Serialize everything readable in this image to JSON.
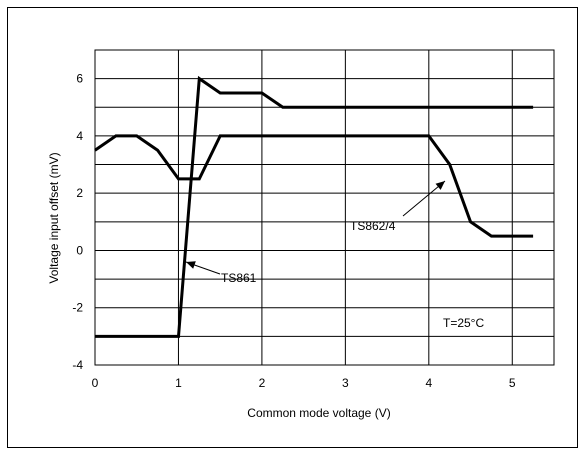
{
  "chart_data": {
    "type": "line",
    "xlabel": "Common mode  voltage (V)",
    "ylabel": "Voltage input offset  (mV)",
    "xlim": [
      0,
      5.5
    ],
    "ylim": [
      -4,
      7
    ],
    "xticks": [
      0,
      1,
      2,
      3,
      4,
      5
    ],
    "yticks": [
      -4,
      -2,
      0,
      2,
      4,
      6
    ],
    "grid": true,
    "series": [
      {
        "name": "TS861",
        "x": [
          0,
          1,
          1.25,
          1.5,
          2,
          2.25,
          5.25
        ],
        "y": [
          -3,
          -3,
          6,
          5.5,
          5.5,
          5,
          5
        ]
      },
      {
        "name": "TS862/4",
        "x": [
          0,
          0.25,
          0.5,
          0.75,
          1,
          1.25,
          1.5,
          4,
          4.25,
          4.5,
          4.75,
          5.25
        ],
        "y": [
          3.5,
          4,
          4,
          3.5,
          2.5,
          2.5,
          4,
          4,
          3,
          1,
          0.5,
          0.5
        ]
      }
    ],
    "annotations": [
      {
        "text": "TS861"
      },
      {
        "text": "TS862/4"
      },
      {
        "text": "T=25°C"
      }
    ]
  }
}
